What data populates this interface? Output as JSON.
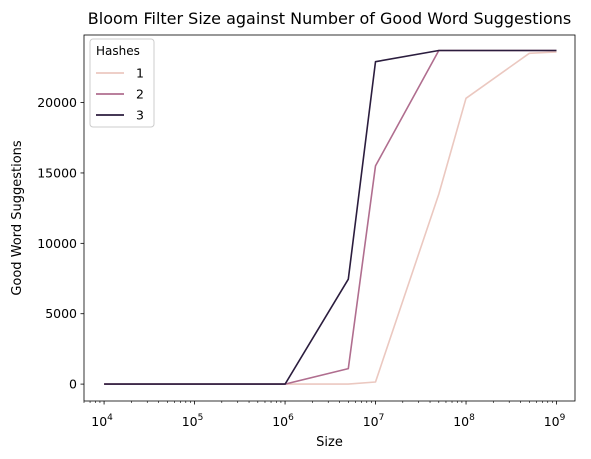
{
  "chart_data": {
    "type": "line",
    "title": "Bloom Filter Size against Number of Good Word Suggestions",
    "xlabel": "Size",
    "ylabel": "Good Word Suggestions",
    "xscale": "log",
    "x": [
      10000,
      1000000,
      5000000,
      10000000,
      50000000,
      100000000,
      500000000,
      1000000000
    ],
    "xlim": [
      6000,
      1600000000
    ],
    "ylim": [
      -1200,
      24800
    ],
    "xticks": [
      {
        "value": 10000,
        "base": "10",
        "exp": "4"
      },
      {
        "value": 100000,
        "base": "10",
        "exp": "5"
      },
      {
        "value": 1000000,
        "base": "10",
        "exp": "6"
      },
      {
        "value": 10000000,
        "base": "10",
        "exp": "7"
      },
      {
        "value": 100000000,
        "base": "10",
        "exp": "8"
      },
      {
        "value": 1000000000,
        "base": "10",
        "exp": "9"
      }
    ],
    "yticks": [
      {
        "value": 0,
        "label": "0"
      },
      {
        "value": 5000,
        "label": "5000"
      },
      {
        "value": 10000,
        "label": "10000"
      },
      {
        "value": 15000,
        "label": "15000"
      },
      {
        "value": 20000,
        "label": "20000"
      }
    ],
    "legend": {
      "title": "Hashes",
      "position": "top-left"
    },
    "grid": false,
    "series": [
      {
        "name": "1",
        "color": "#ebc8c0",
        "values": [
          0,
          0,
          0,
          150,
          13500,
          20300,
          23500,
          23600
        ]
      },
      {
        "name": "2",
        "color": "#b06e8f",
        "values": [
          0,
          0,
          1100,
          15500,
          23700,
          23700,
          23700,
          23700
        ]
      },
      {
        "name": "3",
        "color": "#2b1d3e",
        "values": [
          0,
          0,
          7450,
          22900,
          23700,
          23700,
          23700,
          23700
        ]
      }
    ]
  }
}
